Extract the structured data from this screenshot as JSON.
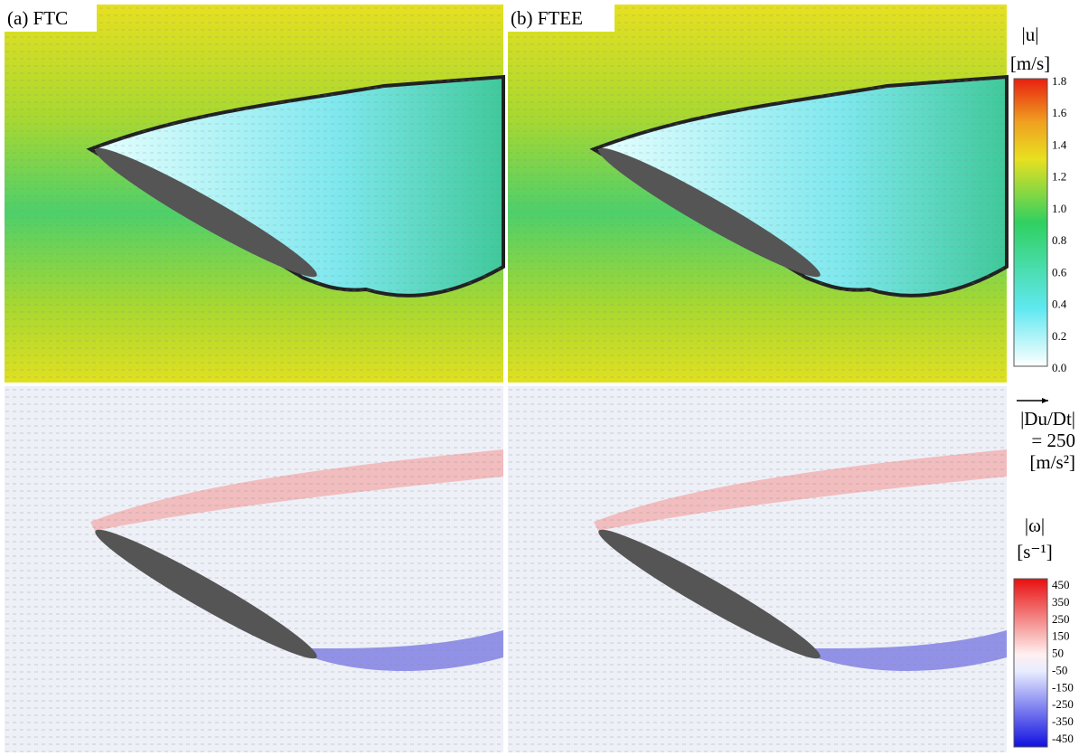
{
  "panels": [
    {
      "label": "(a) FTC"
    },
    {
      "label": "(b) FTEE"
    }
  ],
  "velocity_colorbar": {
    "label": "|u|",
    "unit": "[m/s]",
    "ticks": [
      "1.8",
      "1.6",
      "1.4",
      "1.2",
      "1.0",
      "0.8",
      "0.6",
      "0.4",
      "0.2",
      "0.0"
    ]
  },
  "vector_scale": {
    "label": "|Du/Dt|",
    "value": "= 250",
    "unit": "[m/s²]"
  },
  "vorticity_colorbar": {
    "label": "|ω|",
    "unit": "[s⁻¹]",
    "ticks": [
      "450",
      "350",
      "250",
      "150",
      "50",
      "-50",
      "-150",
      "-250",
      "-350",
      "-450"
    ]
  }
}
